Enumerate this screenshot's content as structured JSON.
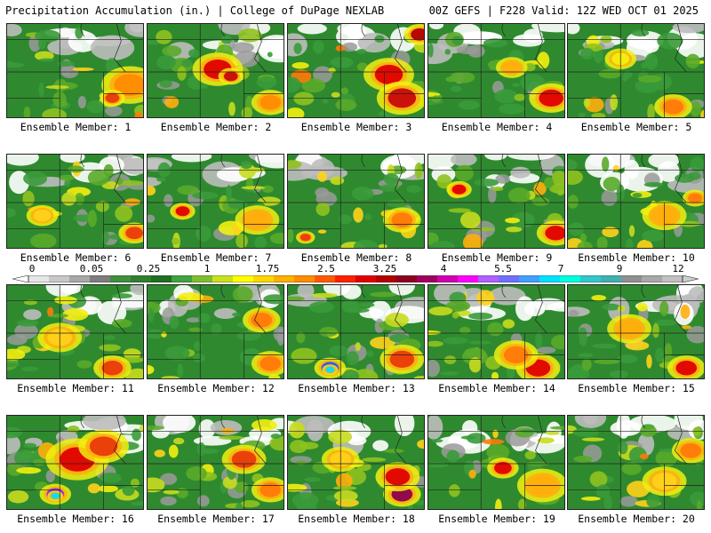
{
  "header": {
    "title_left": "Precipitation Accumulation (in.) | College of DuPage NEXLAB",
    "title_right": "00Z GEFS | F228 Valid: 12Z WED OCT 01 2025"
  },
  "colorbar": {
    "tick_labels": [
      "0",
      "0.05",
      "0.25",
      "1",
      "1.75",
      "2.5",
      "3.25",
      "4",
      "5.5",
      "7",
      "9",
      "12"
    ],
    "colors": [
      "#e6e6e6",
      "#c8c8c8",
      "#a8a8a8",
      "#7e7e7e",
      "#3f8f3f",
      "#2f7f2f",
      "#1f6f1f",
      "#3fa33f",
      "#7fbf2f",
      "#c8e01f",
      "#ffff00",
      "#ffd700",
      "#ffb000",
      "#ff8c00",
      "#ff5a00",
      "#ff2000",
      "#e00000",
      "#b40000",
      "#8c0020",
      "#a00060",
      "#d000b0",
      "#ff00ff",
      "#b060ff",
      "#7070ff",
      "#40a0ff",
      "#00e0ff",
      "#00ffe0",
      "#30c8c8",
      "#40b0b0",
      "#909090",
      "#a8a8a8",
      "#c0c0c0"
    ]
  },
  "panels": [
    {
      "label": "Ensemble Member: 1"
    },
    {
      "label": "Ensemble Member: 2"
    },
    {
      "label": "Ensemble Member: 3"
    },
    {
      "label": "Ensemble Member: 4"
    },
    {
      "label": "Ensemble Member: 5"
    },
    {
      "label": "Ensemble Member: 6"
    },
    {
      "label": "Ensemble Member: 7"
    },
    {
      "label": "Ensemble Member: 8"
    },
    {
      "label": "Ensemble Member: 9"
    },
    {
      "label": "Ensemble Member: 10"
    },
    {
      "label": "Ensemble Member: 11"
    },
    {
      "label": "Ensemble Member: 12"
    },
    {
      "label": "Ensemble Member: 13"
    },
    {
      "label": "Ensemble Member: 14"
    },
    {
      "label": "Ensemble Member: 15"
    },
    {
      "label": "Ensemble Member: 16"
    },
    {
      "label": "Ensemble Member: 17"
    },
    {
      "label": "Ensemble Member: 18"
    },
    {
      "label": "Ensemble Member: 19"
    },
    {
      "label": "Ensemble Member: 20"
    }
  ]
}
